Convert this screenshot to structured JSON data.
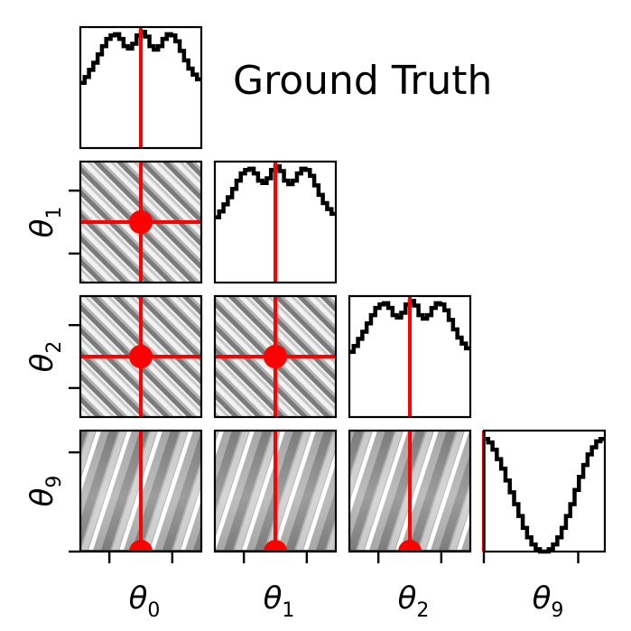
{
  "chart_data": {
    "type": "corner",
    "title": "Ground Truth",
    "parameters": [
      "θ0",
      "θ1",
      "θ2",
      "θ9"
    ],
    "axis_labels": [
      {
        "base": "θ",
        "sub": "0"
      },
      {
        "base": "θ",
        "sub": "1"
      },
      {
        "base": "θ",
        "sub": "2"
      },
      {
        "base": "θ",
        "sub": "9"
      }
    ],
    "ground_truth_relative": [
      0.5,
      0.5,
      0.5,
      0.0
    ],
    "marginals": [
      {
        "param": "θ0",
        "y": [
          0.55,
          0.6,
          0.66,
          0.72,
          0.79,
          0.86,
          0.92,
          0.95,
          0.96,
          0.92,
          0.86,
          0.84,
          0.88,
          0.95,
          0.98,
          0.94,
          0.86,
          0.83,
          0.86,
          0.92,
          0.96,
          0.95,
          0.9,
          0.82,
          0.74,
          0.67,
          0.62,
          0.58
        ]
      },
      {
        "param": "θ1",
        "y": [
          0.55,
          0.6,
          0.66,
          0.72,
          0.79,
          0.86,
          0.92,
          0.95,
          0.96,
          0.92,
          0.86,
          0.84,
          0.88,
          0.95,
          0.98,
          0.94,
          0.86,
          0.83,
          0.86,
          0.92,
          0.96,
          0.95,
          0.9,
          0.82,
          0.74,
          0.67,
          0.62,
          0.58
        ]
      },
      {
        "param": "θ2",
        "y": [
          0.55,
          0.6,
          0.66,
          0.72,
          0.79,
          0.86,
          0.92,
          0.95,
          0.96,
          0.92,
          0.86,
          0.84,
          0.88,
          0.95,
          0.98,
          0.94,
          0.86,
          0.83,
          0.86,
          0.92,
          0.96,
          0.95,
          0.9,
          0.82,
          0.74,
          0.67,
          0.62,
          0.58
        ]
      },
      {
        "param": "θ9",
        "y": [
          0.95,
          0.92,
          0.86,
          0.78,
          0.7,
          0.6,
          0.5,
          0.4,
          0.3,
          0.2,
          0.12,
          0.06,
          0.02,
          0.0,
          0.0,
          0.02,
          0.06,
          0.12,
          0.2,
          0.3,
          0.4,
          0.52,
          0.63,
          0.73,
          0.82,
          0.88,
          0.93,
          0.95
        ]
      }
    ],
    "colors": {
      "truth": "#ff0000",
      "marginal_line": "#000000",
      "density_dark": "#6e6e6e",
      "density_mid": "#a6a6a6",
      "density_light": "#d4d4d4"
    },
    "grid": false,
    "legend": "none"
  }
}
